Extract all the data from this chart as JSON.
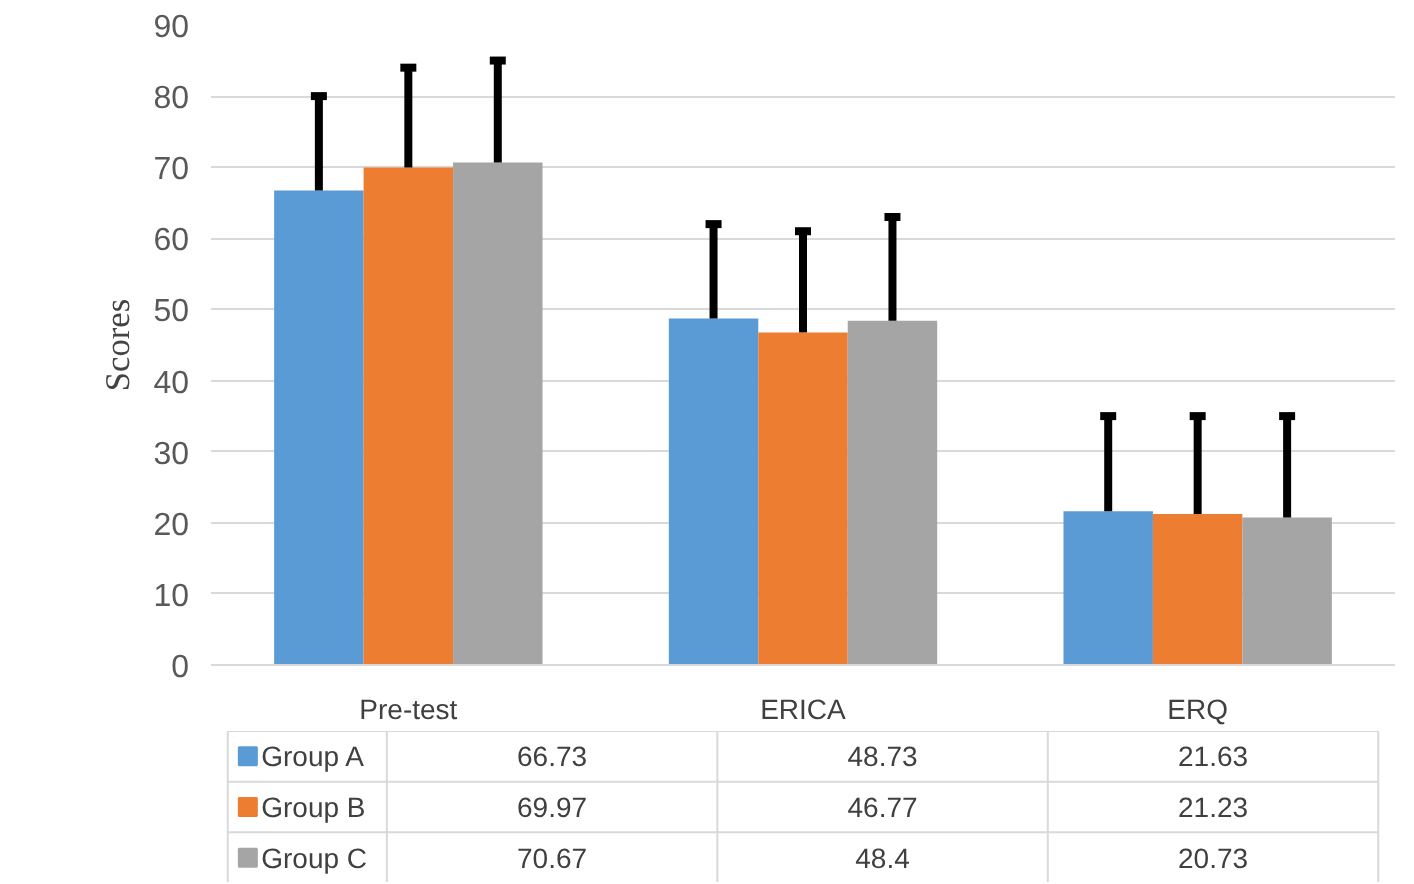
{
  "chart_data": {
    "type": "bar",
    "ylabel": "Scores",
    "categories": [
      "Pre-test",
      "ERICA",
      "ERQ"
    ],
    "series": [
      {
        "name": "Group A",
        "color": "#5b9bd5",
        "values": [
          66.73,
          48.73,
          21.63
        ],
        "errors": [
          [
            66.73,
            80
          ],
          [
            48.73,
            62
          ],
          [
            21.63,
            35
          ]
        ]
      },
      {
        "name": "Group B",
        "color": "#ed7d31",
        "values": [
          69.97,
          46.77,
          21.23
        ],
        "errors": [
          [
            69.97,
            84
          ],
          [
            46.77,
            61
          ],
          [
            21.23,
            35
          ]
        ]
      },
      {
        "name": "Group C",
        "color": "#a5a5a5",
        "values": [
          70.67,
          48.4,
          20.73
        ],
        "errors": [
          [
            70.67,
            85
          ],
          [
            48.4,
            63
          ],
          [
            20.73,
            35
          ]
        ]
      }
    ],
    "ylim": [
      0,
      90
    ],
    "yticks": [
      0,
      10,
      20,
      30,
      40,
      50,
      60,
      70,
      80,
      90
    ],
    "grid": "y",
    "legend": "bottom",
    "data_labels": true
  }
}
